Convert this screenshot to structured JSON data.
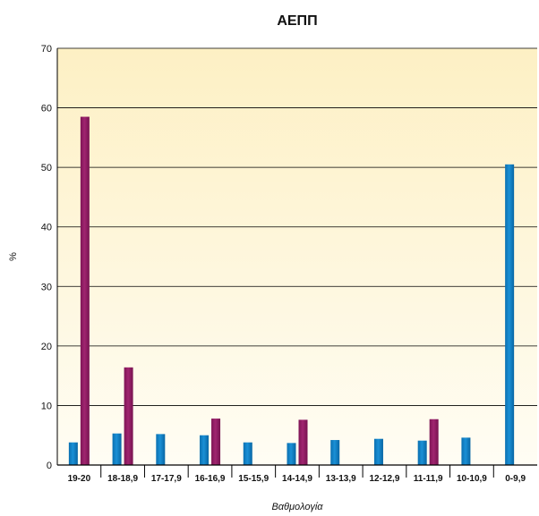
{
  "chart_data": {
    "type": "bar",
    "title": "ΑΕΠΠ",
    "xlabel": "Βαθμολογία",
    "ylabel": "%",
    "ylim": [
      0,
      70
    ],
    "yticks": [
      0,
      10,
      20,
      30,
      40,
      50,
      60,
      70
    ],
    "grid": true,
    "categories": [
      "19-20",
      "18-18,9",
      "17-17,9",
      "16-16,9",
      "15-15,9",
      "14-14,9",
      "13-13,9",
      "12-12,9",
      "11-11,9",
      "10-10,9",
      "0-9,9"
    ],
    "series": [
      {
        "values": [
          3.8,
          5.3,
          5.2,
          5.0,
          3.8,
          3.7,
          4.2,
          4.4,
          4.1,
          4.6,
          50.5
        ],
        "color": "#0a7cc1"
      },
      {
        "values": [
          58.5,
          16.4,
          0,
          7.8,
          0,
          7.6,
          0,
          0,
          7.7,
          0,
          0
        ],
        "color": "#8f1b62"
      }
    ]
  }
}
